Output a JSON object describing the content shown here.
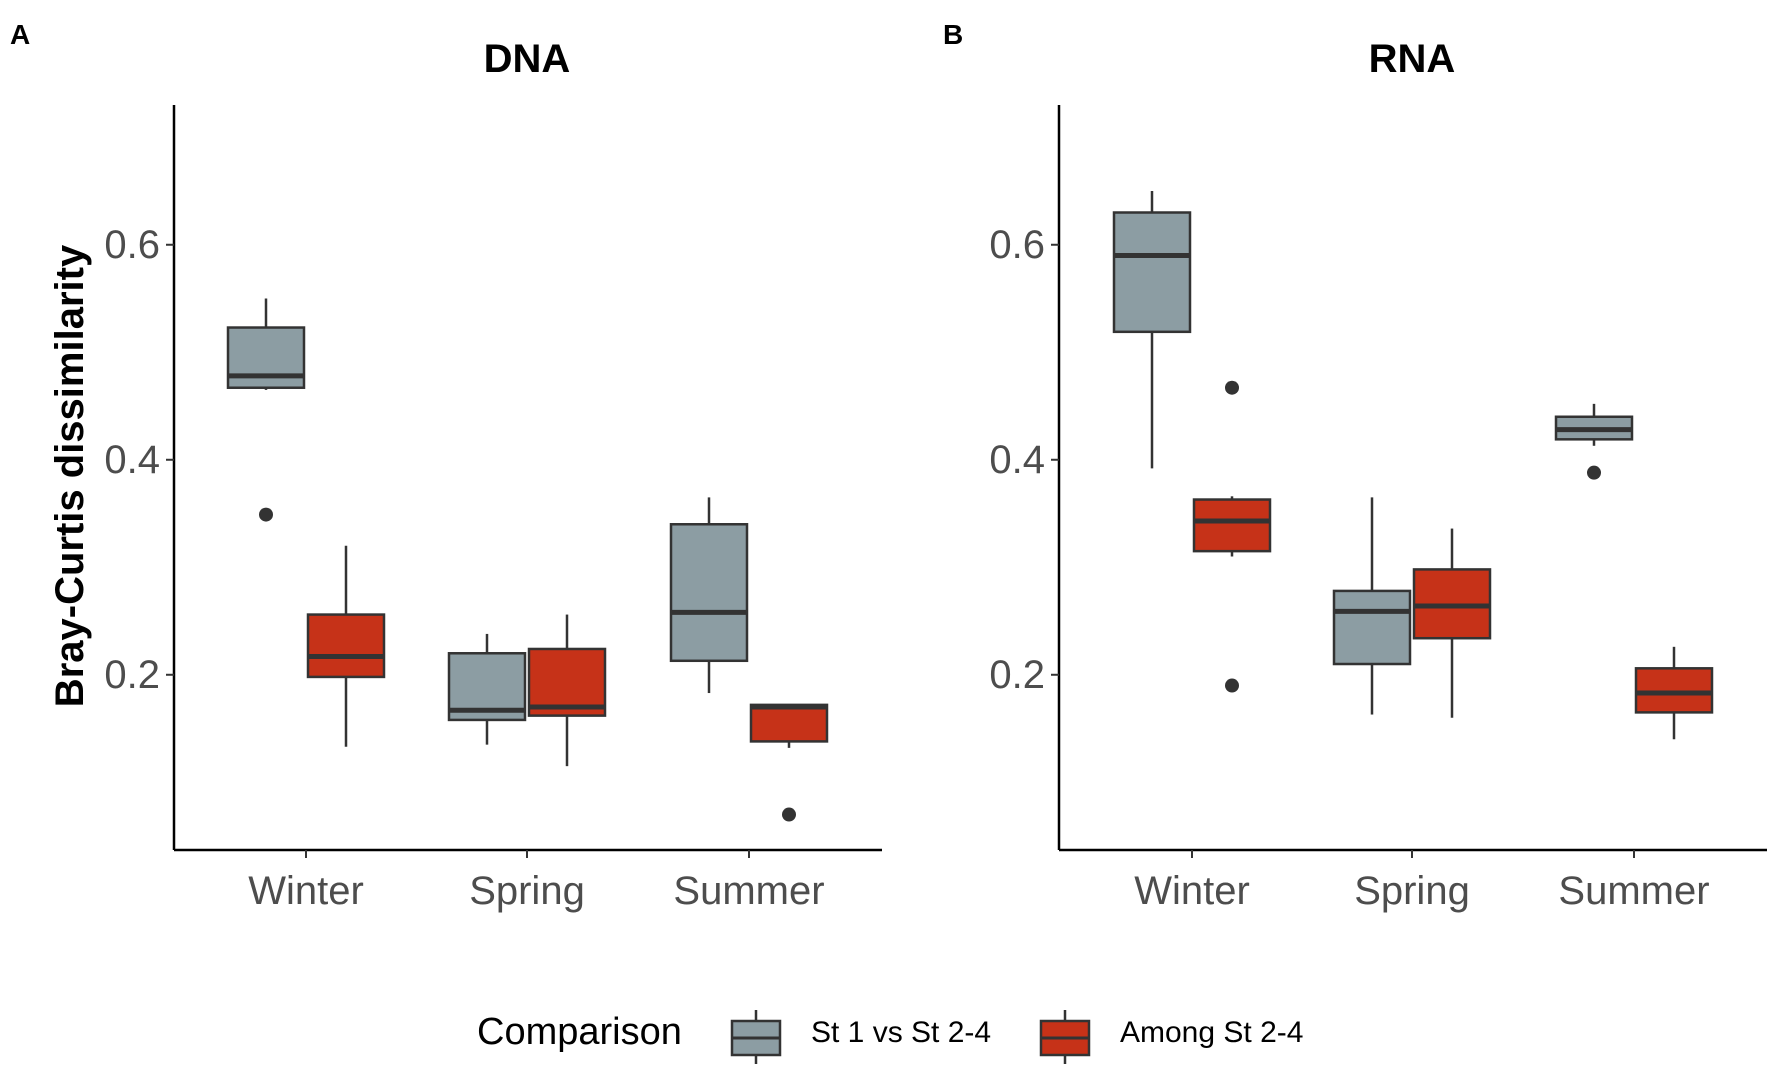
{
  "y_axis_title": "Bray-Curtis dissimilarity",
  "legend": {
    "title": "Comparison",
    "items": [
      {
        "label": "St 1 vs St 2-4",
        "color": "#8c9da3"
      },
      {
        "label": "Among St 2-4",
        "color": "#c63218"
      }
    ]
  },
  "chart_data": [
    {
      "type": "box",
      "panel_letter": "A",
      "title": "DNA",
      "xlabel": "",
      "ylabel": "Bray-Curtis dissimilarity",
      "ylim": [
        0.037,
        0.73
      ],
      "yticks": [
        0.2,
        0.4,
        0.6
      ],
      "ytick_labels": [
        "0.2",
        "0.4",
        "0.6"
      ],
      "categories": [
        "Winter",
        "Spring",
        "Summer"
      ],
      "series": [
        {
          "name": "St 1 vs St 2-4",
          "color": "#8c9da3",
          "boxes": [
            {
              "category": "Winter",
              "min": 0.465,
              "q1": 0.467,
              "median": 0.478,
              "q3": 0.523,
              "max": 0.55,
              "outliers": [
                0.349
              ]
            },
            {
              "category": "Spring",
              "min": 0.135,
              "q1": 0.158,
              "median": 0.167,
              "q3": 0.22,
              "max": 0.238,
              "outliers": []
            },
            {
              "category": "Summer",
              "min": 0.183,
              "q1": 0.213,
              "median": 0.258,
              "q3": 0.34,
              "max": 0.365,
              "outliers": []
            }
          ]
        },
        {
          "name": "Among St 2-4",
          "color": "#c63218",
          "boxes": [
            {
              "category": "Winter",
              "min": 0.133,
              "q1": 0.198,
              "median": 0.217,
              "q3": 0.256,
              "max": 0.32,
              "outliers": []
            },
            {
              "category": "Spring",
              "min": 0.115,
              "q1": 0.162,
              "median": 0.17,
              "q3": 0.224,
              "max": 0.256,
              "outliers": []
            },
            {
              "category": "Summer",
              "min": 0.132,
              "q1": 0.138,
              "median": 0.17,
              "q3": 0.172,
              "max": 0.172,
              "outliers": [
                0.07
              ]
            }
          ]
        }
      ]
    },
    {
      "type": "box",
      "panel_letter": "B",
      "title": "RNA",
      "xlabel": "",
      "ylabel": "",
      "ylim": [
        0.037,
        0.73
      ],
      "yticks": [
        0.2,
        0.4,
        0.6
      ],
      "ytick_labels": [
        "0.2",
        "0.4",
        "0.6"
      ],
      "categories": [
        "Winter",
        "Spring",
        "Summer"
      ],
      "series": [
        {
          "name": "St 1 vs St 2-4",
          "color": "#8c9da3",
          "boxes": [
            {
              "category": "Winter",
              "min": 0.392,
              "q1": 0.519,
              "median": 0.59,
              "q3": 0.63,
              "max": 0.65,
              "outliers": []
            },
            {
              "category": "Spring",
              "min": 0.163,
              "q1": 0.21,
              "median": 0.259,
              "q3": 0.278,
              "max": 0.365,
              "outliers": []
            },
            {
              "category": "Summer",
              "min": 0.413,
              "q1": 0.419,
              "median": 0.428,
              "q3": 0.44,
              "max": 0.452,
              "outliers": [
                0.388
              ]
            }
          ]
        },
        {
          "name": "Among St 2-4",
          "color": "#c63218",
          "boxes": [
            {
              "category": "Winter",
              "min": 0.31,
              "q1": 0.315,
              "median": 0.343,
              "q3": 0.363,
              "max": 0.366,
              "outliers": [
                0.467,
                0.19
              ]
            },
            {
              "category": "Spring",
              "min": 0.16,
              "q1": 0.234,
              "median": 0.264,
              "q3": 0.298,
              "max": 0.336,
              "outliers": []
            },
            {
              "category": "Summer",
              "min": 0.14,
              "q1": 0.165,
              "median": 0.183,
              "q3": 0.206,
              "max": 0.226,
              "outliers": []
            }
          ]
        }
      ]
    }
  ]
}
